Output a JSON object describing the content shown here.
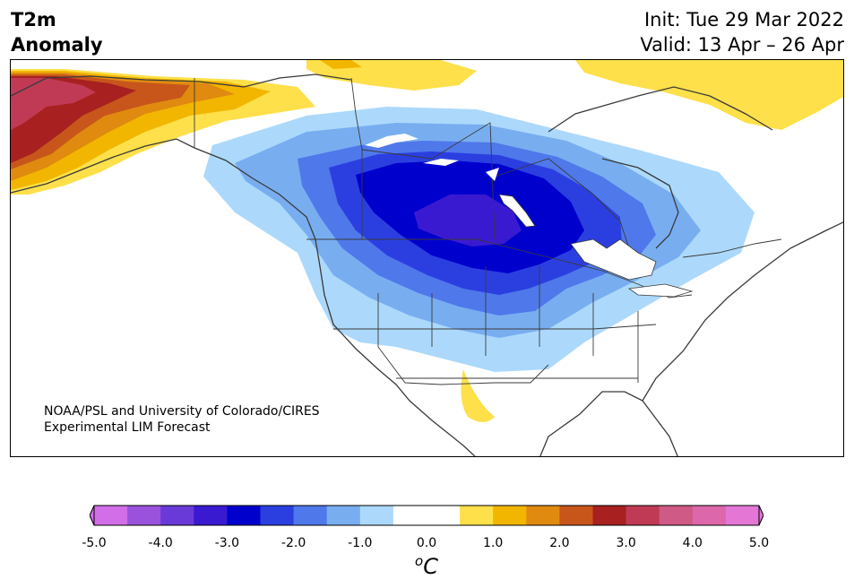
{
  "title": {
    "variable": "T2m",
    "subtitle": "Anomaly",
    "init": "Init: Tue 29 Mar 2022",
    "valid": "Valid: 13 Apr – 26 Apr"
  },
  "credit": {
    "line1": "NOAA/PSL and University of Colorado/CIRES",
    "line2": "Experimental LIM Forecast"
  },
  "colorbar": {
    "unit_super": "o",
    "unit_main": "C",
    "tick_labels": [
      "-5.0",
      "-4.0",
      "-3.0",
      "-2.0",
      "-1.0",
      "0.0",
      "1.0",
      "2.0",
      "3.0",
      "4.0",
      "5.0"
    ],
    "colors": [
      "#d26ee8",
      "#9a52dc",
      "#6a3ad8",
      "#3a1ad0",
      "#0000cd",
      "#2b3fe0",
      "#4f78ea",
      "#78aef0",
      "#acd9fb",
      "#ffffff",
      "#ffffff",
      "#fde04a",
      "#f2b600",
      "#e08a10",
      "#c8561b",
      "#a82020",
      "#c03a55",
      "#cf5a85",
      "#dc67aa",
      "#e477d6"
    ],
    "under_color": "#d26ee8",
    "over_color": "#e477d6"
  },
  "colors": {
    "coastline": "#3a3a3a",
    "warm_far_west": "#c8334a",
    "cold_core": "#0000cd"
  }
}
